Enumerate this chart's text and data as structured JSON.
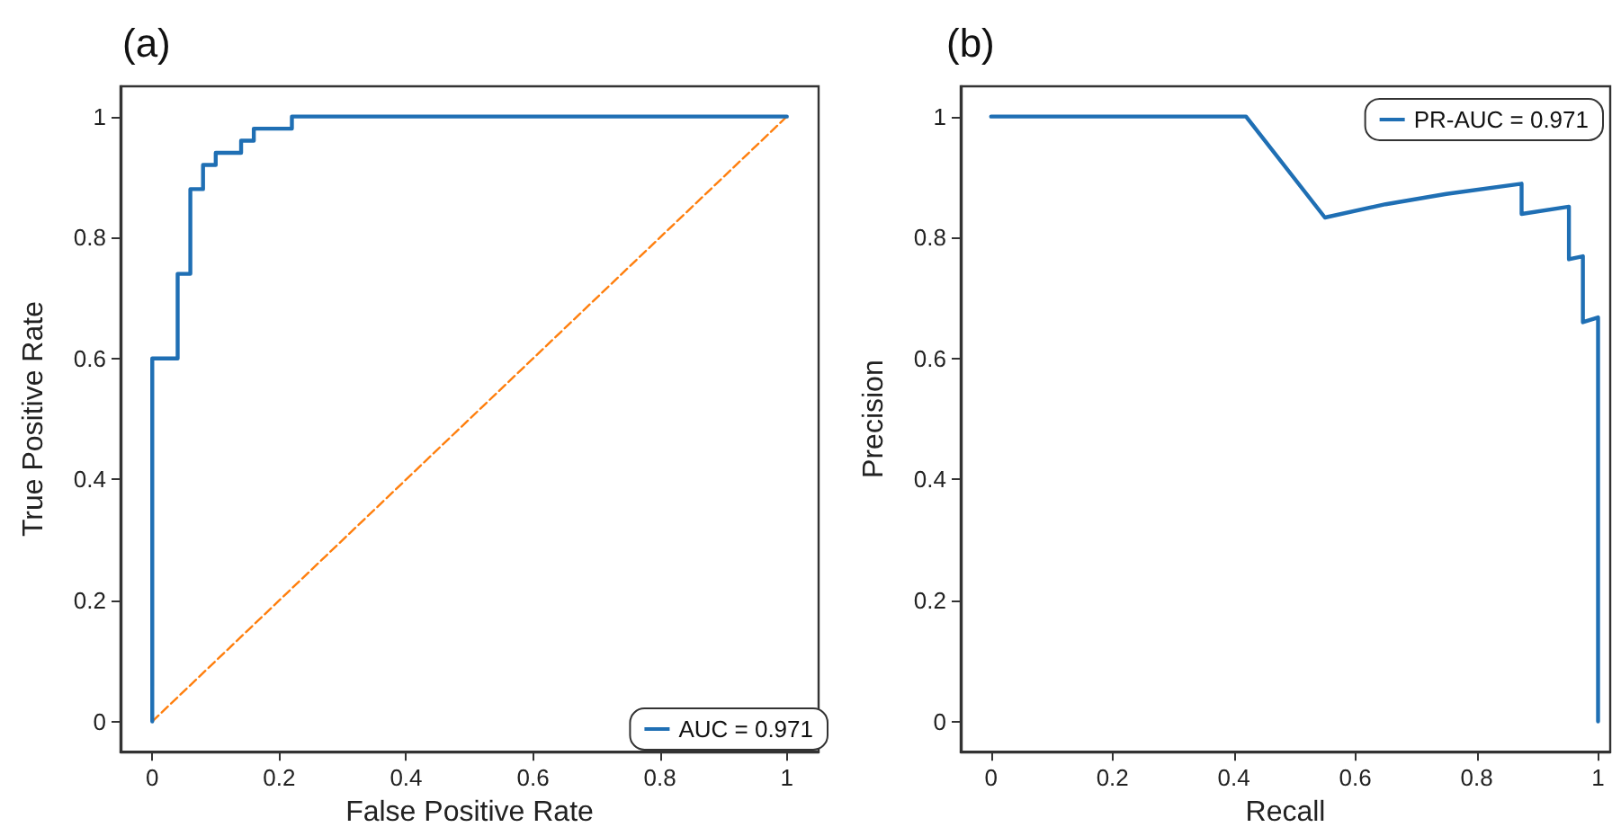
{
  "chart_data": [
    {
      "type": "line",
      "title": "(a)",
      "xlabel": "False Positive Rate",
      "ylabel": "True Positive Rate",
      "xlim": [
        -0.05,
        1.05
      ],
      "ylim": [
        -0.05,
        1.05
      ],
      "xticks": [
        0,
        0.2,
        0.4,
        0.6,
        0.8,
        1
      ],
      "yticks": [
        0,
        0.2,
        0.4,
        0.6,
        0.8,
        1
      ],
      "grid": false,
      "legend": "bottom right",
      "marker": "none",
      "series": [
        {
          "name": "AUC = 0.971",
          "color": "#1f6fb4",
          "line_style": "solid",
          "x": [
            0,
            0,
            0.04,
            0.04,
            0.06,
            0.06,
            0.08,
            0.08,
            0.1,
            0.1,
            0.14,
            0.14,
            0.16,
            0.16,
            0.22,
            0.22,
            1
          ],
          "values": [
            0,
            0.6,
            0.6,
            0.74,
            0.74,
            0.88,
            0.88,
            0.92,
            0.92,
            0.94,
            0.94,
            0.96,
            0.96,
            0.98,
            0.98,
            1,
            1
          ]
        },
        {
          "color": "#ff7f0e",
          "line_style": "dashed",
          "x": [
            0,
            1
          ],
          "values": [
            0,
            1
          ]
        }
      ]
    },
    {
      "type": "line",
      "title": "(b)",
      "xlabel": "Recall",
      "ylabel": "Precision",
      "xlim": [
        -0.05,
        1.02
      ],
      "ylim": [
        -0.05,
        1.05
      ],
      "xticks": [
        0,
        0.2,
        0.4,
        0.6,
        0.8,
        1
      ],
      "yticks": [
        0,
        0.2,
        0.4,
        0.6,
        0.8,
        1
      ],
      "grid": false,
      "legend": "top right",
      "marker": "none",
      "series": [
        {
          "name": "PR-AUC = 0.971",
          "color": "#1f6fb4",
          "line_style": "solid",
          "x": [
            0,
            0.42,
            0.55,
            0.65,
            0.75,
            0.874,
            0.874,
            0.952,
            0.952,
            0.975,
            0.975,
            1,
            1
          ],
          "values": [
            1,
            1,
            0.833,
            0.855,
            0.872,
            0.889,
            0.839,
            0.851,
            0.764,
            0.769,
            0.66,
            0.668,
            0
          ]
        }
      ]
    }
  ]
}
